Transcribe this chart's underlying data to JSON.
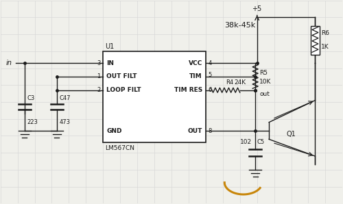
{
  "bg_color": "#f0f0eb",
  "grid_color": "#d8d8d8",
  "line_color": "#1a1a1a",
  "curve_color": "#c8860a",
  "title": "38k-45k",
  "ic_label": "U1",
  "ic_name": "LM567CN"
}
